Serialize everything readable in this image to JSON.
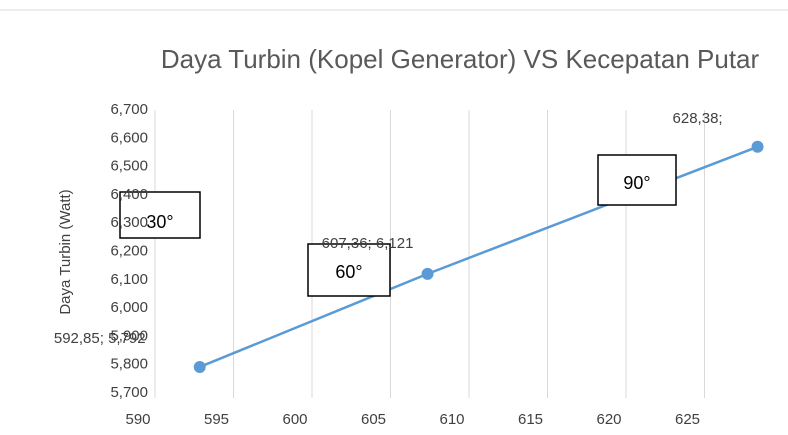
{
  "chart_data": {
    "type": "line",
    "title": "Daya Turbin (Kopel Generator) VS Kecepatan Putar",
    "y_label": "Daya Turbin (Watt)",
    "x": [
      592.85,
      607.36,
      628.38
    ],
    "series": [
      {
        "name": "Daya Turbin",
        "color": "#5b9bd5",
        "values": [
          5.792,
          6.121,
          6.57
        ]
      }
    ],
    "point_labels": [
      "592,85; 5,792",
      "607,36; 6,121",
      "628,38;"
    ],
    "annotations": [
      "30°",
      "60°",
      "90°"
    ],
    "xlim": [
      590,
      630
    ],
    "xticks": [
      590,
      595,
      600,
      605,
      610,
      615,
      620,
      625
    ],
    "ylim": [
      5.7,
      6.7
    ],
    "yticks": [
      {
        "value": 5.7,
        "label": "5,700"
      },
      {
        "value": 5.8,
        "label": "5,800"
      },
      {
        "value": 5.9,
        "label": "5,900"
      },
      {
        "value": 6.0,
        "label": "6,000"
      },
      {
        "value": 6.1,
        "label": "6,100"
      },
      {
        "value": 6.2,
        "label": "6,200"
      },
      {
        "value": 6.3,
        "label": "6,300"
      },
      {
        "value": 6.4,
        "label": "6,400"
      },
      {
        "value": 6.5,
        "label": "6,500"
      },
      {
        "value": 6.6,
        "label": "6,600"
      },
      {
        "value": 6.7,
        "label": "6,700"
      }
    ],
    "grid": "x"
  }
}
